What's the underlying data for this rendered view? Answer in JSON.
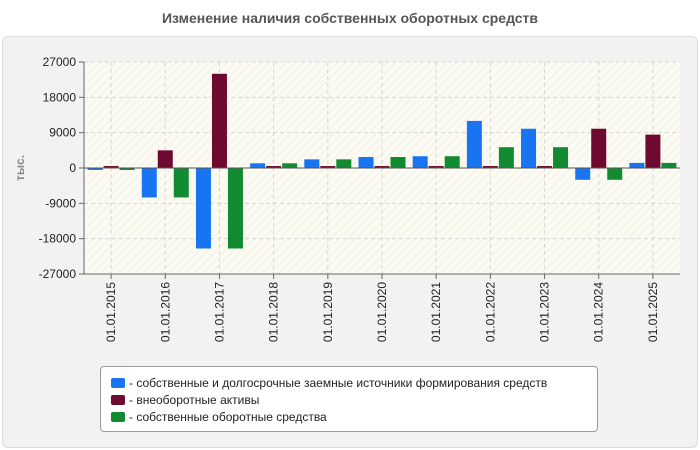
{
  "chart_data": {
    "type": "bar",
    "title": "Изменение наличия собственных оборотных средств",
    "ylabel": "тыс.",
    "xlabel": "",
    "ylim": [
      -27000,
      27000
    ],
    "yticks": [
      27000,
      18000,
      9000,
      0,
      -9000,
      -18000,
      -27000
    ],
    "grid": true,
    "legend_position": "bottom",
    "categories": [
      "01.01.2015",
      "01.01.2016",
      "01.01.2017",
      "01.01.2018",
      "01.01.2019",
      "01.01.2020",
      "01.01.2021",
      "01.01.2022",
      "01.01.2023",
      "01.01.2024",
      "01.01.2025"
    ],
    "series": [
      {
        "name": "- собственные и долгосрочные заемные источники формирования средств",
        "color": "#1874f0",
        "values": [
          -500,
          -7500,
          -20500,
          1200,
          2200,
          2800,
          3000,
          12000,
          10000,
          -3000,
          1300
        ]
      },
      {
        "name": "- внеоборотные активы",
        "color": "#6e0a30",
        "values": [
          500,
          4500,
          24000,
          500,
          500,
          500,
          500,
          500,
          500,
          10000,
          8500
        ]
      },
      {
        "name": "- собственные оборотные средства",
        "color": "#118a32",
        "values": [
          -500,
          -7500,
          -20500,
          1200,
          2200,
          2800,
          3000,
          5300,
          5300,
          -3000,
          1300
        ]
      }
    ]
  }
}
